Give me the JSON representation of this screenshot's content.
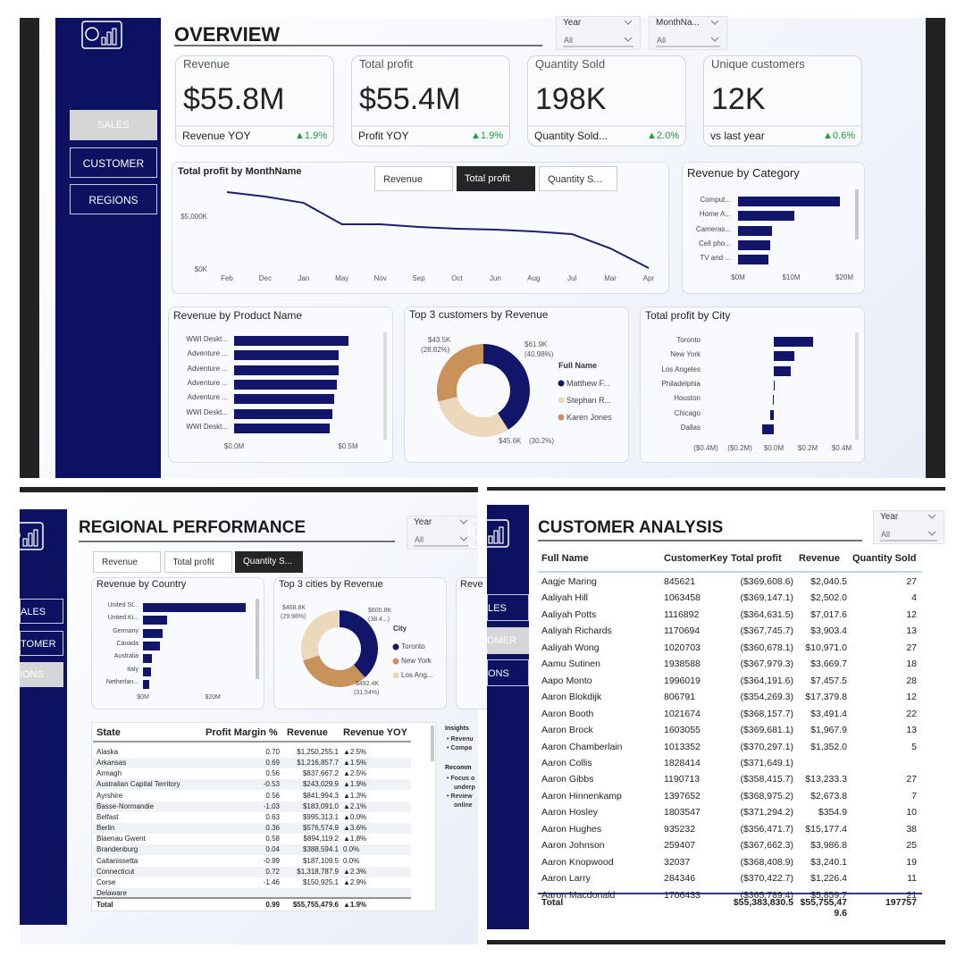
{
  "overview": {
    "title": "OVERVIEW",
    "nav": [
      "SALES",
      "CUSTOMER",
      "REGIONS"
    ],
    "filters": [
      {
        "label": "Year",
        "value": "All"
      },
      {
        "label": "MonthNa...",
        "value": "All"
      }
    ],
    "kpis": [
      {
        "label": "Revenue",
        "value": "$55.8M",
        "sub": "Revenue YOY",
        "change": "▲1.9%"
      },
      {
        "label": "Total profit",
        "value": "$55.4M",
        "sub": "Profit YOY",
        "change": "▲1.9%"
      },
      {
        "label": "Quantity Sold",
        "value": "198K",
        "sub": "Quantity Sold...",
        "change": "▲2.0%"
      },
      {
        "label": "Unique customers",
        "value": "12K",
        "sub": "vs last year",
        "change": "▲0.6%"
      }
    ],
    "buttons": [
      "Revenue",
      "Total profit",
      "Quantity S..."
    ],
    "profit_by_month": {
      "type": "line",
      "title": "Total profit by MonthName",
      "categories": [
        "Feb",
        "Dec",
        "Jan",
        "May",
        "Nov",
        "Sep",
        "Oct",
        "Jun",
        "Aug",
        "Jul",
        "Mar",
        "Apr"
      ],
      "values": [
        7370,
        6950,
        6350,
        4320,
        4320,
        4070,
        3900,
        3810,
        3640,
        3390,
        2030,
        170
      ],
      "color": "#1a1f6e",
      "ylim": [
        0,
        8000
      ],
      "yticks": [
        {
          "value": 0,
          "label": "$0K"
        },
        {
          "value": 5000,
          "label": "$5,000K"
        }
      ]
    },
    "revenue_by_category": {
      "type": "bar",
      "title": "Revenue by Category",
      "categories": [
        "Comput...",
        "Home A...",
        "Cameras...",
        "Cell pho...",
        "TV and ..."
      ],
      "values": [
        19.2,
        10.6,
        6.4,
        6.0,
        5.7
      ],
      "color": "#12166b",
      "xlim": [
        0,
        20
      ],
      "xticks": [
        {
          "value": 0,
          "label": "$0M"
        },
        {
          "value": 10,
          "label": "$10M"
        },
        {
          "value": 20,
          "label": "$20M"
        }
      ]
    },
    "revenue_by_product": {
      "type": "bar",
      "title": "Revenue by Product Name",
      "categories": [
        "WWI Deskt...",
        "Adventure ...",
        "Adventure ...",
        "Adventure ...",
        "Adventure ...",
        "WWI Deskt...",
        "WWI Deskt..."
      ],
      "values": [
        0.5,
        0.46,
        0.46,
        0.45,
        0.44,
        0.43,
        0.42
      ],
      "color": "#12166b",
      "xlim": [
        0,
        0.6
      ],
      "xticks": [
        {
          "value": 0,
          "label": "$0.0M"
        },
        {
          "value": 0.5,
          "label": "$0.5M"
        }
      ]
    },
    "top_customers": {
      "type": "pie",
      "title": "Top 3 customers by Revenue",
      "legend_title": "Full Name",
      "categories": [
        "Matthew F...",
        "Stephan R...",
        "Karen Jones"
      ],
      "values": [
        61.9,
        45.6,
        43.5
      ],
      "value_labels": [
        "$61.9K",
        "$45.6K",
        "$43.5K"
      ],
      "percent_labels": [
        "(40.98%)",
        "(30.2%)",
        "(28.82%)"
      ],
      "colors": [
        "#12166b",
        "#ecd9bb",
        "#c8925a"
      ]
    },
    "profit_by_city": {
      "type": "bar",
      "title": "Total profit by City",
      "categories": [
        "Toronto",
        "New York",
        "Los Angeles",
        "Philadelphia",
        "Houston",
        "Chicago",
        "Dallas"
      ],
      "values": [
        0.23,
        0.12,
        0.1,
        0.005,
        -0.005,
        -0.02,
        -0.07
      ],
      "color": "#12166b",
      "xlim": [
        -0.4,
        0.4
      ],
      "xticks": [
        {
          "value": -0.4,
          "label": "($0.4M)"
        },
        {
          "value": -0.2,
          "label": "($0.2M)"
        },
        {
          "value": 0,
          "label": "$0.0M"
        },
        {
          "value": 0.2,
          "label": "$0.2M"
        },
        {
          "value": 0.4,
          "label": "$0.4M"
        }
      ]
    }
  },
  "regional": {
    "title": "REGIONAL PERFORMANCE",
    "nav": [
      "ALES",
      "TOMER",
      "IONS"
    ],
    "filter": {
      "label": "Year",
      "value": "All"
    },
    "buttons": [
      "Revenue",
      "Total profit",
      "Quantity S..."
    ],
    "revenue_by_country": {
      "type": "bar",
      "title": "Revenue by Country",
      "categories": [
        "United St...",
        "United Ki...",
        "Germany",
        "Canada",
        "Australia",
        "Italy",
        "Netherlan..."
      ],
      "values": [
        29.5,
        6.9,
        5.6,
        4.9,
        2.6,
        2.3,
        1.8
      ],
      "color": "#12166b",
      "xlim": [
        0,
        32
      ],
      "xticks": [
        {
          "value": 0,
          "label": "$0M"
        },
        {
          "value": 20,
          "label": "$20M"
        }
      ]
    },
    "top_cities": {
      "type": "pie",
      "title": "Top 3 cities by Revenue",
      "legend_title": "City",
      "categories": [
        "Toronto",
        "New York",
        "Los Ang..."
      ],
      "values": [
        600.8,
        492.4,
        468.8
      ],
      "value_labels": [
        "$600.8K",
        "$492.4K",
        "$468.8K"
      ],
      "percent_labels": [
        "(38.4...)",
        "(31.54%)",
        "(29.98%)"
      ],
      "colors": [
        "#12166b",
        "#c8925a",
        "#ecd9bb"
      ]
    },
    "partial_title": "Reve",
    "table": {
      "columns": [
        "State",
        "Profit Margin %",
        "Revenue",
        "Revenue YOY"
      ],
      "rows": [
        [
          "Alaska",
          "0.70",
          "$1,250,255.1",
          "▲2.5%"
        ],
        [
          "Arkansas",
          "0.69",
          "$1,216,857.7",
          "▲1.5%"
        ],
        [
          "Armagh",
          "0.56",
          "$837,667.2",
          "▲2.5%"
        ],
        [
          "Australian Capital Territory",
          "-0.53",
          "$243,029.9",
          "▲1.9%"
        ],
        [
          "Ayrshire",
          "0.56",
          "$841,994.3",
          "▲1.3%"
        ],
        [
          "Basse-Normandie",
          "-1.03",
          "$183,091.0",
          "▲2.1%"
        ],
        [
          "Belfast",
          "0.63",
          "$995,313.1",
          "▲0.0%"
        ],
        [
          "Berlin",
          "0.36",
          "$576,574.9",
          "▲3.6%"
        ],
        [
          "Blaenau Gwent",
          "0.58",
          "$894,119.2",
          "▲1.8%"
        ],
        [
          "Brandenburg",
          "0.04",
          "$388,594.1",
          "0.0%"
        ],
        [
          "Caltanissetta",
          "-0.99",
          "$187,109.5",
          "0.0%"
        ],
        [
          "Connecticut",
          "0.72",
          "$1,318,787.9",
          "▲2.3%"
        ],
        [
          "Corse",
          "-1.46",
          "$150,925.1",
          "▲2.9%"
        ],
        [
          "Delaware",
          null,
          null,
          null
        ]
      ],
      "total": [
        "Total",
        "0.99",
        "$55,755,479.6",
        "▲1.9%"
      ]
    },
    "insights": {
      "title": "Insights",
      "lines": [
        "• Revenu",
        "• Compa"
      ],
      "rec_title": "Recomm",
      "rec_lines": [
        "• Focus o",
        "underp",
        "• Review",
        "online"
      ]
    }
  },
  "customer": {
    "title": "CUSTOMER ANALYSIS",
    "nav": [
      "LES",
      "OMER",
      "ONS"
    ],
    "filter": {
      "label": "Year",
      "value": "All"
    },
    "table": {
      "columns": [
        "Full Name",
        "CustomerKey",
        "Total profit",
        "Revenue",
        "Quantity Sold"
      ],
      "rows": [
        [
          "Aagje Maring",
          "845621",
          "($369,608.6)",
          "$2,040.5",
          "27"
        ],
        [
          "Aaliyah Hill",
          "1063458",
          "($369,147.1)",
          "$2,502.0",
          "4"
        ],
        [
          "Aaliyah Potts",
          "1116892",
          "($364,631.5)",
          "$7,017.6",
          "12"
        ],
        [
          "Aaliyah Richards",
          "1170694",
          "($367,745.7)",
          "$3,903.4",
          "13"
        ],
        [
          "Aaliyah Wong",
          "1020703",
          "($360,678.1)",
          "$10,971.0",
          "27"
        ],
        [
          "Aamu Sutinen",
          "1938588",
          "($367,979.3)",
          "$3,669.7",
          "18"
        ],
        [
          "Aapo Monto",
          "1996019",
          "($364,191.6)",
          "$7,457.5",
          "28"
        ],
        [
          "Aaron Blokdijk",
          "806791",
          "($354,269.3)",
          "$17,379.8",
          "12"
        ],
        [
          "Aaron Booth",
          "1021674",
          "($368,157.7)",
          "$3,491.4",
          "22"
        ],
        [
          "Aaron Brock",
          "1603055",
          "($369,681.1)",
          "$1,967.9",
          "13"
        ],
        [
          "Aaron Chamberlain",
          "1013352",
          "($370,297.1)",
          "$1,352.0",
          "5"
        ],
        [
          "Aaron Collis",
          "1828414",
          "($371,649.1)",
          null,
          null
        ],
        [
          "Aaron Gibbs",
          "1190713",
          "($358,415.7)",
          "$13,233.3",
          "27"
        ],
        [
          "Aaron Hinnenkamp",
          "1397652",
          "($368,975.2)",
          "$2,673.8",
          "7"
        ],
        [
          "Aaron Hosley",
          "1803547",
          "($371,294.2)",
          "$354.9",
          "10"
        ],
        [
          "Aaron Hughes",
          "935232",
          "($356,471.7)",
          "$15,177.4",
          "38"
        ],
        [
          "Aaron Johnson",
          "259407",
          "($367,662.3)",
          "$3,986.8",
          "25"
        ],
        [
          "Aaron Knopwood",
          "32037",
          "($368,408.9)",
          "$3,240.1",
          "19"
        ],
        [
          "Aaron Larry",
          "284346",
          "($370,422.7)",
          "$1,226.4",
          "11"
        ],
        [
          "Aaron Macdonald",
          "1706433",
          "($365,789.4)",
          "$5,859.7",
          "21"
        ]
      ],
      "total": [
        "Total",
        null,
        "$55,383,830.5",
        "$55,755,479.6",
        "197757"
      ]
    }
  }
}
